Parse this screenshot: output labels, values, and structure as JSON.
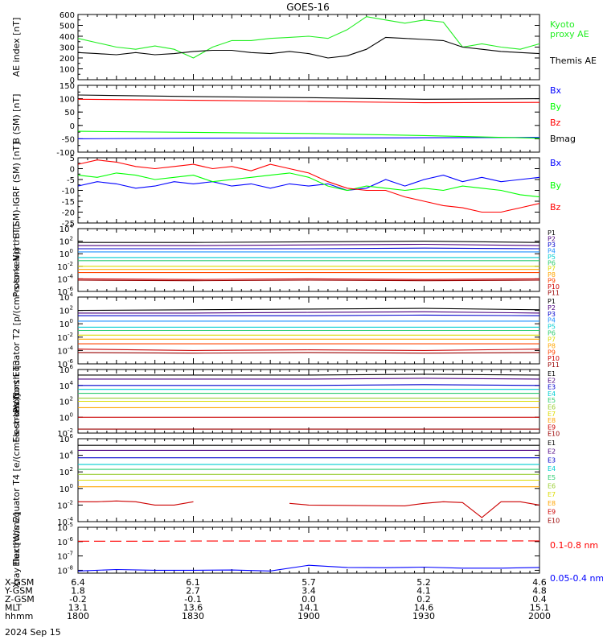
{
  "title": "GOES-16",
  "date_label": "2024 Sep 15",
  "colors": {
    "black": "#000000",
    "red": "#ff0000",
    "green": "#00ff00",
    "blue": "#0000ff",
    "ae_green": "#22ee22"
  },
  "footer": {
    "rows": [
      {
        "label": "X-GSM",
        "values": [
          "6.4",
          "6.1",
          "5.7",
          "5.2",
          "4.6"
        ]
      },
      {
        "label": "Y-GSM",
        "values": [
          "1.8",
          "2.7",
          "3.4",
          "4.1",
          "4.8"
        ]
      },
      {
        "label": "Z-GSM",
        "values": [
          "-0.2",
          "-0.1",
          "0.0",
          "0.2",
          "0.4"
        ]
      },
      {
        "label": "MLT",
        "values": [
          "13.1",
          "13.6",
          "14.1",
          "14.6",
          "15.1"
        ]
      },
      {
        "label": "hhmm",
        "values": [
          "1800",
          "1830",
          "1900",
          "1930",
          "2000"
        ]
      }
    ]
  },
  "chart_data": [
    {
      "id": "ae",
      "type": "line",
      "ylabel": "AE index [nT]",
      "ylim": [
        0,
        600
      ],
      "scale": "linear",
      "yticks": [
        "0",
        "100",
        "200",
        "300",
        "400",
        "500",
        "600"
      ],
      "x": [
        0,
        5,
        10,
        15,
        20,
        25,
        30,
        35,
        40,
        45,
        50,
        55,
        60,
        65,
        70,
        75,
        80,
        85,
        90,
        95,
        100,
        105,
        110,
        115,
        120
      ],
      "series": [
        {
          "name": "Kyoto proxy AE",
          "color": "#22ee22",
          "values": [
            380,
            340,
            300,
            280,
            310,
            280,
            200,
            300,
            360,
            360,
            380,
            390,
            400,
            380,
            460,
            580,
            550,
            520,
            550,
            530,
            300,
            330,
            300,
            280,
            330
          ]
        },
        {
          "name": "Themis AE",
          "color": "#000000",
          "values": [
            250,
            240,
            230,
            250,
            230,
            240,
            260,
            270,
            270,
            250,
            240,
            260,
            240,
            200,
            220,
            280,
            390,
            380,
            370,
            360,
            300,
            280,
            260,
            250,
            240
          ]
        }
      ]
    },
    {
      "id": "b",
      "type": "line",
      "ylabel": "B (SM) [nT]",
      "ylim": [
        -100,
        150
      ],
      "scale": "linear",
      "yticks": [
        "-100",
        "-50",
        "0",
        "50",
        "100",
        "150"
      ],
      "x": [
        0,
        30,
        60,
        90,
        120
      ],
      "series": [
        {
          "name": "Bx",
          "color": "#0000ff",
          "values": [
            -50,
            -48,
            -47,
            -46,
            -45
          ]
        },
        {
          "name": "By",
          "color": "#00ff00",
          "values": [
            -22,
            -26,
            -30,
            -38,
            -48
          ]
        },
        {
          "name": "Bz",
          "color": "#ff0000",
          "values": [
            98,
            94,
            90,
            85,
            86
          ]
        },
        {
          "name": "Bmag",
          "color": "#000000",
          "values": [
            114,
            108,
            104,
            98,
            100
          ]
        }
      ]
    },
    {
      "id": "db",
      "type": "line",
      "ylabel": "B (SM)-IGRF (SM) [nT]",
      "ylim": [
        -25,
        5
      ],
      "scale": "linear",
      "yticks": [
        "-25",
        "-20",
        "-15",
        "-10",
        "-5",
        "0",
        "5"
      ],
      "x": [
        0,
        5,
        10,
        15,
        20,
        25,
        30,
        35,
        40,
        45,
        50,
        55,
        60,
        65,
        70,
        75,
        80,
        85,
        90,
        95,
        100,
        105,
        110,
        115,
        120
      ],
      "series": [
        {
          "name": "Bx",
          "color": "#0000ff",
          "values": [
            -8,
            -6,
            -7,
            -9,
            -8,
            -6,
            -7,
            -6,
            -8,
            -7,
            -9,
            -7,
            -8,
            -7,
            -10,
            -9,
            -5,
            -8,
            -5,
            -3,
            -6,
            -4,
            -6,
            -5,
            -4
          ]
        },
        {
          "name": "By",
          "color": "#00ff00",
          "values": [
            -3,
            -4,
            -2,
            -3,
            -5,
            -4,
            -3,
            -6,
            -5,
            -4,
            -3,
            -2,
            -4,
            -8,
            -10,
            -8,
            -9,
            -10,
            -9,
            -10,
            -8,
            -9,
            -10,
            -12,
            -13
          ]
        },
        {
          "name": "Bz",
          "color": "#ff0000",
          "values": [
            2,
            4,
            3,
            1,
            0,
            1,
            2,
            0,
            1,
            -1,
            2,
            0,
            -2,
            -6,
            -9,
            -10,
            -10,
            -13,
            -15,
            -17,
            -18,
            -20,
            -20,
            -18,
            -16
          ]
        }
      ]
    },
    {
      "id": "p1",
      "type": "line",
      "ylabel": "Protons North T1",
      "ylim": [
        -6,
        4
      ],
      "scale": "log",
      "yticks": [
        "10^4",
        "10^2",
        "10^0",
        "10^-2",
        "10^-4",
        "10^-6"
      ],
      "x": [
        0,
        30,
        60,
        90,
        120
      ],
      "series": [
        {
          "name": "P1",
          "color": "#000000",
          "values": [
            1.8,
            1.8,
            1.9,
            2.0,
            1.8
          ]
        },
        {
          "name": "P2",
          "color": "#4b0082",
          "values": [
            1.3,
            1.3,
            1.4,
            1.5,
            1.3
          ]
        },
        {
          "name": "P3",
          "color": "#0000cd",
          "values": [
            0.8,
            0.8,
            0.8,
            0.9,
            0.8
          ]
        },
        {
          "name": "P4",
          "color": "#1e90ff",
          "values": [
            0.3,
            0.3,
            0.3,
            0.3,
            0.3
          ]
        },
        {
          "name": "P5",
          "color": "#00ced1",
          "values": [
            -0.6,
            -0.6,
            -0.6,
            -0.6,
            -0.6
          ]
        },
        {
          "name": "P6",
          "color": "#2ecc71",
          "values": [
            -1.1,
            -1.1,
            -1.1,
            -1.1,
            -1.1
          ]
        },
        {
          "name": "P7",
          "color": "#dcdc00",
          "values": [
            -2.0,
            -2.0,
            -2.0,
            -2.0,
            -2.0
          ]
        },
        {
          "name": "P8",
          "color": "#ffa500",
          "values": [
            -2.5,
            -2.5,
            -2.5,
            -2.5,
            -2.5
          ]
        },
        {
          "name": "P9",
          "color": "#ff4500",
          "values": [
            -3.0,
            -3.0,
            -3.0,
            -3.0,
            -3.0
          ]
        },
        {
          "name": "P10",
          "color": "#cc0000",
          "values": [
            -4.0,
            -4.1,
            -4.0,
            -4.1,
            -4.0
          ]
        },
        {
          "name": "P11",
          "color": "#990000",
          "values": [
            -4.2,
            -4.3,
            -4.2,
            -4.3,
            -4.2
          ]
        }
      ]
    },
    {
      "id": "p2",
      "type": "line",
      "ylabel": "Protons Equator T2 [p/(cm²-s-sr-keV)]",
      "ylim": [
        -6,
        4
      ],
      "scale": "log",
      "yticks": [
        "10^4",
        "10^2",
        "10^0",
        "10^-2",
        "10^-4",
        "10^-6"
      ],
      "x": [
        0,
        30,
        60,
        90,
        120
      ],
      "series": [
        {
          "name": "P1",
          "color": "#000000",
          "values": [
            2.0,
            2.1,
            2.2,
            2.3,
            2.1
          ]
        },
        {
          "name": "P2",
          "color": "#4b0082",
          "values": [
            1.6,
            1.6,
            1.7,
            1.8,
            1.6
          ]
        },
        {
          "name": "P3",
          "color": "#0000cd",
          "values": [
            1.2,
            1.2,
            1.2,
            1.3,
            1.2
          ]
        },
        {
          "name": "P4",
          "color": "#1e90ff",
          "values": [
            0.4,
            0.4,
            0.4,
            0.4,
            0.4
          ]
        },
        {
          "name": "P5",
          "color": "#00ced1",
          "values": [
            -0.5,
            -0.5,
            -0.5,
            -0.5,
            -0.5
          ]
        },
        {
          "name": "P6",
          "color": "#2ecc71",
          "values": [
            -1.0,
            -1.0,
            -1.0,
            -1.0,
            -1.0
          ]
        },
        {
          "name": "P7",
          "color": "#dcdc00",
          "values": [
            -1.7,
            -1.7,
            -1.7,
            -1.7,
            -1.7
          ]
        },
        {
          "name": "P8",
          "color": "#ffa500",
          "values": [
            -2.3,
            -2.3,
            -2.3,
            -2.3,
            -2.3
          ]
        },
        {
          "name": "P9",
          "color": "#ff4500",
          "values": [
            -3.0,
            -3.0,
            -3.0,
            -3.0,
            -3.0
          ]
        },
        {
          "name": "P10",
          "color": "#cc0000",
          "values": [
            -3.8,
            -4.0,
            -3.9,
            -4.0,
            -3.8
          ]
        },
        {
          "name": "P11",
          "color": "#990000",
          "values": [
            -4.3,
            -4.4,
            -4.3,
            -4.4,
            -4.3
          ]
        }
      ]
    },
    {
      "id": "e3",
      "type": "line",
      "ylabel": "Electrons North T3",
      "ylim": [
        -2,
        6
      ],
      "scale": "log",
      "yticks": [
        "10^6",
        "10^4",
        "10^2",
        "10^0",
        "10^-2"
      ],
      "x": [
        0,
        30,
        60,
        90,
        120
      ],
      "series": [
        {
          "name": "E1",
          "color": "#000000",
          "values": [
            5.3,
            5.3,
            5.3,
            5.4,
            5.3
          ]
        },
        {
          "name": "E2",
          "color": "#4b0082",
          "values": [
            4.8,
            4.8,
            4.8,
            4.9,
            4.8
          ]
        },
        {
          "name": "E3",
          "color": "#0000cd",
          "values": [
            4.0,
            4.0,
            4.0,
            4.1,
            4.0
          ]
        },
        {
          "name": "E4",
          "color": "#00ced1",
          "values": [
            3.5,
            3.5,
            3.5,
            3.5,
            3.5
          ]
        },
        {
          "name": "E5",
          "color": "#2ecc71",
          "values": [
            3.0,
            3.0,
            3.0,
            3.0,
            3.0
          ]
        },
        {
          "name": "E6",
          "color": "#9acd32",
          "values": [
            2.4,
            2.4,
            2.4,
            2.4,
            2.4
          ]
        },
        {
          "name": "E7",
          "color": "#dcdc00",
          "values": [
            2.0,
            2.0,
            2.0,
            2.0,
            2.0
          ]
        },
        {
          "name": "E8",
          "color": "#ffa500",
          "values": [
            1.2,
            1.2,
            1.2,
            1.2,
            1.2
          ]
        },
        {
          "name": "E9",
          "color": "#cc0000",
          "values": [
            0.0,
            0.0,
            0.0,
            0.0,
            0.0
          ]
        },
        {
          "name": "E10",
          "color": "#990000",
          "values": [
            -1.5,
            -1.5,
            -1.5,
            -1.5,
            -1.5
          ]
        }
      ]
    },
    {
      "id": "e4",
      "type": "line",
      "ylabel": "Electrons Equator T4 [e/(cm²-s-sr-keV)]",
      "ylim": [
        -4,
        6
      ],
      "scale": "log",
      "yticks": [
        "10^6",
        "10^4",
        "10^2",
        "10^0",
        "10^-2",
        "10^-4"
      ],
      "x": [
        0,
        5,
        10,
        20,
        25,
        30,
        40,
        50,
        55,
        60,
        65,
        80,
        85,
        95,
        100,
        105,
        110,
        115,
        120
      ],
      "series": [
        {
          "name": "E1",
          "color": "#000000",
          "x": [
            0,
            120
          ],
          "values": [
            5.2,
            5.2
          ]
        },
        {
          "name": "E2",
          "color": "#4b0082",
          "x": [
            0,
            120
          ],
          "values": [
            4.6,
            4.6
          ]
        },
        {
          "name": "E3",
          "color": "#0000cd",
          "x": [
            0,
            120
          ],
          "values": [
            3.7,
            3.7
          ]
        },
        {
          "name": "E4",
          "color": "#00ced1",
          "x": [
            0,
            120
          ],
          "values": [
            2.9,
            2.9
          ]
        },
        {
          "name": "E5",
          "color": "#2ecc71",
          "x": [
            0,
            120
          ],
          "values": [
            2.3,
            2.3
          ]
        },
        {
          "name": "E6",
          "color": "#9acd32",
          "x": [
            0,
            120
          ],
          "values": [
            1.7,
            1.7
          ]
        },
        {
          "name": "E7",
          "color": "#dcdc00",
          "x": [
            0,
            120
          ],
          "values": [
            1.0,
            1.0
          ]
        },
        {
          "name": "E8",
          "color": "#ffa500",
          "x": [
            0,
            120
          ],
          "values": [
            0.2,
            0.2
          ]
        },
        {
          "name": "E9",
          "color": "#cc0000",
          "x": [
            0,
            5,
            10,
            15,
            20,
            25,
            30,
            35,
            40,
            50,
            55,
            60,
            85,
            90,
            95,
            100,
            105,
            110,
            115,
            120
          ],
          "values": [
            -1.6,
            -1.6,
            -1.5,
            -1.6,
            -2.0,
            -2.0,
            -1.6,
            null,
            -1.8,
            null,
            -1.8,
            -2.0,
            -2.1,
            -1.8,
            -1.6,
            -1.7,
            -3.5,
            -1.6,
            -1.6,
            -2.0
          ]
        },
        {
          "name": "E10",
          "color": "#990000",
          "x": [
            0,
            120
          ],
          "values": [
            null,
            null
          ]
        }
      ]
    },
    {
      "id": "xray",
      "type": "line",
      "ylabel": "Xray flux [W/m2]",
      "ylim": [
        -8.2,
        -5
      ],
      "scale": "log",
      "yticks": [
        "10^-5",
        "10^-6",
        "10^-7",
        "10^-8"
      ],
      "x": [
        0,
        10,
        20,
        30,
        40,
        50,
        60,
        70,
        80,
        90,
        100,
        110,
        120
      ],
      "series": [
        {
          "name": "0.1-0.8 nm",
          "color": "#ff0000",
          "values": [
            -5.97,
            -5.97,
            -5.97,
            -5.96,
            -5.96,
            -5.96,
            -5.96,
            -5.96,
            -5.96,
            -5.95,
            -5.95,
            -5.95,
            -5.95
          ]
        },
        {
          "name": "0.05-0.4 nm",
          "color": "#0000ff",
          "values": [
            -8.05,
            -7.95,
            -8.0,
            -8.0,
            -7.98,
            -8.05,
            -7.65,
            -7.8,
            -7.82,
            -7.78,
            -7.85,
            -7.85,
            -7.8
          ]
        }
      ]
    }
  ]
}
